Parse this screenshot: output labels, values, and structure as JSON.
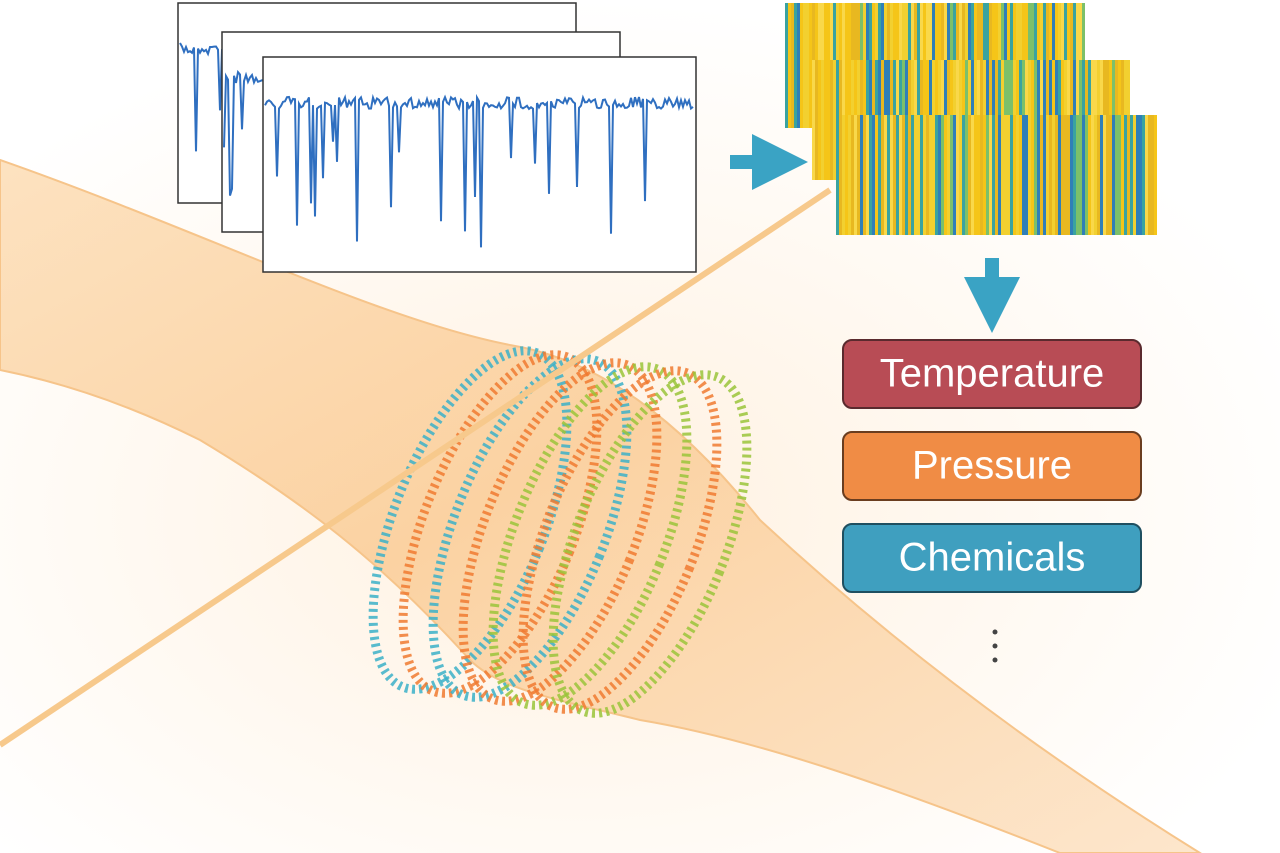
{
  "outputs": [
    {
      "label": "Temperature"
    },
    {
      "label": "Pressure"
    },
    {
      "label": "Chemicals"
    }
  ]
}
